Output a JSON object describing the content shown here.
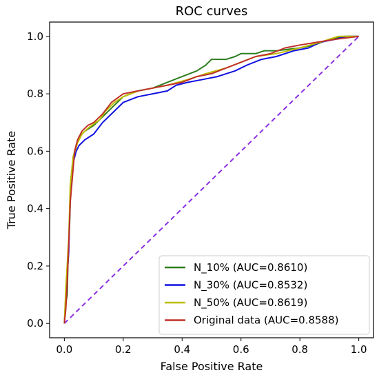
{
  "chart_data": {
    "type": "line",
    "title": "ROC curves",
    "xlabel": "False Positive Rate",
    "ylabel": "True Positive Rate",
    "xlim": [
      -0.05,
      1.05
    ],
    "ylim": [
      -0.05,
      1.05
    ],
    "xticks": [
      {
        "value": 0.0,
        "label": "0.0"
      },
      {
        "value": 0.2,
        "label": "0.2"
      },
      {
        "value": 0.4,
        "label": "0.4"
      },
      {
        "value": 0.6,
        "label": "0.6"
      },
      {
        "value": 0.8,
        "label": "0.8"
      },
      {
        "value": 1.0,
        "label": "1.0"
      }
    ],
    "yticks": [
      {
        "value": 0.0,
        "label": "0.0"
      },
      {
        "value": 0.2,
        "label": "0.2"
      },
      {
        "value": 0.4,
        "label": "0.4"
      },
      {
        "value": 0.6,
        "label": "0.6"
      },
      {
        "value": 0.8,
        "label": "0.8"
      },
      {
        "value": 1.0,
        "label": "1.0"
      }
    ],
    "grid": false,
    "legend_position": "bottom-right",
    "diagonal": {
      "points": [
        [
          0,
          0
        ],
        [
          1,
          1
        ]
      ],
      "color": "#8a2be2",
      "style": "dashed"
    },
    "series": [
      {
        "name": "N_10% (AUC=0.8610)",
        "color": "#2e7d1f",
        "points": [
          [
            0,
            0
          ],
          [
            0.005,
            0.07
          ],
          [
            0.01,
            0.1
          ],
          [
            0.012,
            0.2
          ],
          [
            0.018,
            0.35
          ],
          [
            0.022,
            0.5
          ],
          [
            0.03,
            0.58
          ],
          [
            0.04,
            0.62
          ],
          [
            0.05,
            0.65
          ],
          [
            0.07,
            0.67
          ],
          [
            0.1,
            0.69
          ],
          [
            0.13,
            0.72
          ],
          [
            0.17,
            0.76
          ],
          [
            0.2,
            0.79
          ],
          [
            0.25,
            0.81
          ],
          [
            0.3,
            0.82
          ],
          [
            0.35,
            0.84
          ],
          [
            0.4,
            0.86
          ],
          [
            0.45,
            0.88
          ],
          [
            0.48,
            0.9
          ],
          [
            0.5,
            0.92
          ],
          [
            0.55,
            0.92
          ],
          [
            0.58,
            0.93
          ],
          [
            0.6,
            0.94
          ],
          [
            0.65,
            0.94
          ],
          [
            0.68,
            0.95
          ],
          [
            0.72,
            0.95
          ],
          [
            0.8,
            0.96
          ],
          [
            0.85,
            0.97
          ],
          [
            0.9,
            0.99
          ],
          [
            0.95,
            1.0
          ],
          [
            1,
            1
          ]
        ]
      },
      {
        "name": "N_30% (AUC=0.8532)",
        "color": "#1010e0",
        "points": [
          [
            0,
            0
          ],
          [
            0.005,
            0.1
          ],
          [
            0.015,
            0.25
          ],
          [
            0.02,
            0.45
          ],
          [
            0.03,
            0.56
          ],
          [
            0.04,
            0.6
          ],
          [
            0.05,
            0.62
          ],
          [
            0.07,
            0.64
          ],
          [
            0.1,
            0.66
          ],
          [
            0.13,
            0.7
          ],
          [
            0.17,
            0.74
          ],
          [
            0.2,
            0.77
          ],
          [
            0.25,
            0.79
          ],
          [
            0.3,
            0.8
          ],
          [
            0.35,
            0.81
          ],
          [
            0.38,
            0.83
          ],
          [
            0.42,
            0.84
          ],
          [
            0.47,
            0.85
          ],
          [
            0.52,
            0.86
          ],
          [
            0.58,
            0.88
          ],
          [
            0.62,
            0.9
          ],
          [
            0.67,
            0.92
          ],
          [
            0.72,
            0.93
          ],
          [
            0.78,
            0.95
          ],
          [
            0.83,
            0.96
          ],
          [
            0.87,
            0.98
          ],
          [
            0.92,
            0.99
          ],
          [
            0.96,
            1.0
          ],
          [
            1,
            1
          ]
        ]
      },
      {
        "name": "N_50% (AUC=0.8619)",
        "color": "#bdbd00",
        "points": [
          [
            0,
            0
          ],
          [
            0.005,
            0.12
          ],
          [
            0.015,
            0.3
          ],
          [
            0.02,
            0.48
          ],
          [
            0.03,
            0.58
          ],
          [
            0.045,
            0.63
          ],
          [
            0.06,
            0.66
          ],
          [
            0.08,
            0.68
          ],
          [
            0.12,
            0.71
          ],
          [
            0.14,
            0.74
          ],
          [
            0.17,
            0.77
          ],
          [
            0.2,
            0.79
          ],
          [
            0.25,
            0.81
          ],
          [
            0.3,
            0.82
          ],
          [
            0.35,
            0.83
          ],
          [
            0.42,
            0.85
          ],
          [
            0.48,
            0.87
          ],
          [
            0.55,
            0.89
          ],
          [
            0.6,
            0.91
          ],
          [
            0.65,
            0.93
          ],
          [
            0.72,
            0.94
          ],
          [
            0.8,
            0.96
          ],
          [
            0.87,
            0.98
          ],
          [
            0.93,
            1.0
          ],
          [
            1,
            1
          ]
        ]
      },
      {
        "name": "Original data (AUC=0.8588)",
        "color": "#c0302a",
        "points": [
          [
            0,
            0
          ],
          [
            0.005,
            0.05
          ],
          [
            0.01,
            0.15
          ],
          [
            0.015,
            0.28
          ],
          [
            0.02,
            0.42
          ],
          [
            0.03,
            0.54
          ],
          [
            0.035,
            0.6
          ],
          [
            0.045,
            0.64
          ],
          [
            0.06,
            0.67
          ],
          [
            0.08,
            0.69
          ],
          [
            0.1,
            0.7
          ],
          [
            0.13,
            0.73
          ],
          [
            0.16,
            0.77
          ],
          [
            0.2,
            0.8
          ],
          [
            0.25,
            0.81
          ],
          [
            0.3,
            0.82
          ],
          [
            0.35,
            0.83
          ],
          [
            0.4,
            0.84
          ],
          [
            0.45,
            0.86
          ],
          [
            0.5,
            0.87
          ],
          [
            0.55,
            0.89
          ],
          [
            0.6,
            0.91
          ],
          [
            0.65,
            0.93
          ],
          [
            0.7,
            0.94
          ],
          [
            0.75,
            0.96
          ],
          [
            0.8,
            0.97
          ],
          [
            0.86,
            0.98
          ],
          [
            0.92,
            0.99
          ],
          [
            1,
            1
          ]
        ]
      }
    ]
  }
}
